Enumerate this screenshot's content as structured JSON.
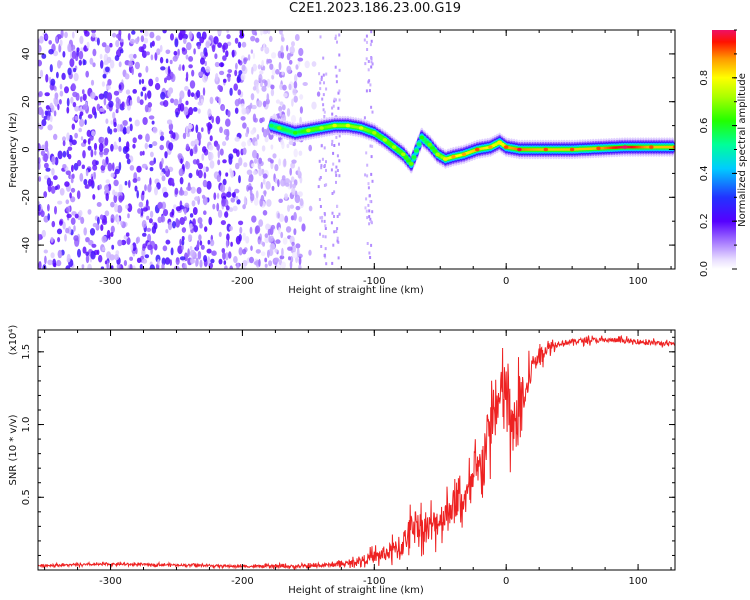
{
  "title": "C2E1.2023.186.23.00.G19",
  "chart_data": [
    {
      "type": "heatmap",
      "name": "spectrogram",
      "xlabel": "Height of straight line (km)",
      "ylabel": "Frequency (Hz)",
      "xlim": [
        -355,
        128
      ],
      "ylim": [
        -50,
        50
      ],
      "xticks": [
        -300,
        -200,
        -100,
        0,
        100
      ],
      "xtick_labels": [
        "-300",
        "-200",
        "-100",
        "0",
        "100"
      ],
      "yticks": [
        -40,
        -20,
        0,
        20,
        40
      ],
      "ytick_labels": [
        "-40",
        "-20",
        "0",
        "20",
        "40"
      ],
      "colorbar": {
        "label": "Normalized spectral amplitude",
        "range": [
          0,
          1
        ],
        "ticks": [
          0.0,
          0.2,
          0.4,
          0.6,
          0.8
        ],
        "tick_labels": [
          "0.0",
          "0.2",
          "0.4",
          "0.6",
          "0.8"
        ]
      },
      "noise_region": {
        "x_range": [
          -355,
          -160
        ],
        "freq_range": [
          -50,
          50
        ],
        "amplitude": 0.15
      },
      "ridge": [
        {
          "x": -178,
          "freq": 10,
          "amp": 0.45
        },
        {
          "x": -172,
          "freq": 9,
          "amp": 0.55
        },
        {
          "x": -160,
          "freq": 7,
          "amp": 0.5
        },
        {
          "x": -150,
          "freq": 8,
          "amp": 0.6
        },
        {
          "x": -140,
          "freq": 9,
          "amp": 0.6
        },
        {
          "x": -130,
          "freq": 10,
          "amp": 0.65
        },
        {
          "x": -120,
          "freq": 10,
          "amp": 0.65
        },
        {
          "x": -110,
          "freq": 9,
          "amp": 0.65
        },
        {
          "x": -100,
          "freq": 7,
          "amp": 0.6
        },
        {
          "x": -92,
          "freq": 4,
          "amp": 0.6
        },
        {
          "x": -85,
          "freq": 1,
          "amp": 0.6
        },
        {
          "x": -78,
          "freq": -2,
          "amp": 0.6
        },
        {
          "x": -72,
          "freq": -6,
          "amp": 0.55
        },
        {
          "x": -64,
          "freq": 5,
          "amp": 0.5
        },
        {
          "x": -58,
          "freq": 2,
          "amp": 0.55
        },
        {
          "x": -52,
          "freq": -2,
          "amp": 0.6
        },
        {
          "x": -46,
          "freq": -4,
          "amp": 0.7
        },
        {
          "x": -40,
          "freq": -3,
          "amp": 0.75
        },
        {
          "x": -32,
          "freq": -2,
          "amp": 0.75
        },
        {
          "x": -22,
          "freq": 0,
          "amp": 0.8
        },
        {
          "x": -12,
          "freq": 1,
          "amp": 0.75
        },
        {
          "x": -5,
          "freq": 3,
          "amp": 0.7
        },
        {
          "x": 0,
          "freq": 1,
          "amp": 0.8
        },
        {
          "x": 10,
          "freq": 0,
          "amp": 0.85
        },
        {
          "x": 30,
          "freq": 0,
          "amp": 0.8
        },
        {
          "x": 50,
          "freq": 0,
          "amp": 0.8
        },
        {
          "x": 70,
          "freq": 0.5,
          "amp": 0.8
        },
        {
          "x": 90,
          "freq": 1,
          "amp": 0.95
        },
        {
          "x": 110,
          "freq": 1,
          "amp": 0.8
        },
        {
          "x": 128,
          "freq": 1,
          "amp": 0.8
        }
      ]
    },
    {
      "type": "line",
      "name": "snr",
      "xlabel": "Height of straight line (km)",
      "ylabel": "SNR (10 * v/v)",
      "y_multiplier": "(x10⁴)",
      "xlim": [
        -355,
        128
      ],
      "ylim": [
        0,
        16500
      ],
      "xticks": [
        -300,
        -200,
        -100,
        0,
        100
      ],
      "xtick_labels": [
        "-300",
        "-200",
        "-100",
        "0",
        "100"
      ],
      "yticks": [
        5000,
        10000,
        15000
      ],
      "ytick_labels": [
        "0.5",
        "1.0",
        "1.5"
      ],
      "color": "#ee2222",
      "trend": [
        [
          -355,
          300
        ],
        [
          -300,
          400
        ],
        [
          -250,
          350
        ],
        [
          -200,
          250
        ],
        [
          -150,
          250
        ],
        [
          -120,
          450
        ],
        [
          -100,
          900
        ],
        [
          -80,
          1500
        ],
        [
          -70,
          3300
        ],
        [
          -60,
          2800
        ],
        [
          -50,
          3500
        ],
        [
          -40,
          4500
        ],
        [
          -30,
          5000
        ],
        [
          -20,
          7000
        ],
        [
          -10,
          10500
        ],
        [
          0,
          12500
        ],
        [
          5,
          9000
        ],
        [
          10,
          11500
        ],
        [
          15,
          12000
        ],
        [
          20,
          14200
        ],
        [
          30,
          15200
        ],
        [
          40,
          15600
        ],
        [
          60,
          15800
        ],
        [
          80,
          15800
        ],
        [
          100,
          15700
        ],
        [
          128,
          15500
        ]
      ],
      "noise": [
        [
          -355,
          150
        ],
        [
          -200,
          150
        ],
        [
          -120,
          300
        ],
        [
          -90,
          1200
        ],
        [
          -75,
          2000
        ],
        [
          -30,
          2500
        ],
        [
          -10,
          4000
        ],
        [
          5,
          5000
        ],
        [
          20,
          1500
        ],
        [
          40,
          400
        ],
        [
          128,
          300
        ]
      ]
    }
  ]
}
